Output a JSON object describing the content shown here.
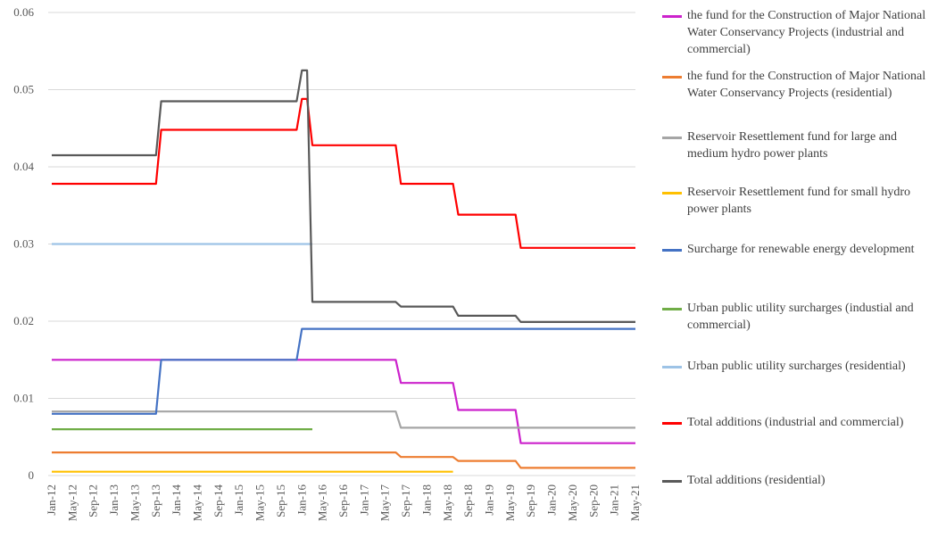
{
  "chart_data": {
    "type": "line",
    "title": "",
    "xlabel": "",
    "ylabel": "",
    "ylim": [
      0,
      0.06
    ],
    "yticks": [
      0,
      0.01,
      0.02,
      0.03,
      0.04,
      0.05,
      0.06
    ],
    "ytick_labels": [
      "0",
      "0.01",
      "0.02",
      "0.03",
      "0.04",
      "0.05",
      "0.06"
    ],
    "x_start": "Jan-12",
    "x_end": "May-21",
    "x_ticks": [
      "Jan-12",
      "May-12",
      "Sep-12",
      "Jan-13",
      "May-13",
      "Sep-13",
      "Jan-14",
      "May-14",
      "Sep-14",
      "Jan-15",
      "May-15",
      "Sep-15",
      "Jan-16",
      "May-16",
      "Sep-16",
      "Jan-17",
      "May-17",
      "Sep-17",
      "Jan-18",
      "May-18",
      "Sep-18",
      "Jan-19",
      "May-19",
      "Sep-19",
      "Jan-20",
      "May-20",
      "Sep-20",
      "Jan-21",
      "May-21"
    ],
    "grid": "horizontal",
    "legend_position": "right",
    "series": [
      {
        "name": "the fund for the Construction of Major National Water Conservancy Projects (industrial and commercial)",
        "color": "#cc22cc",
        "points": [
          [
            "Jan-12",
            0.015
          ],
          [
            "Jul-17",
            0.015
          ],
          [
            "Aug-17",
            0.012
          ],
          [
            "Jun-18",
            0.012
          ],
          [
            "Jul-18",
            0.0085
          ],
          [
            "Jun-19",
            0.0085
          ],
          [
            "Jul-19",
            0.0042
          ],
          [
            "May-21",
            0.0042
          ]
        ]
      },
      {
        "name": "the fund for the Construction of Major National Water Conservancy Projects (residential)",
        "color": "#ed7d31",
        "points": [
          [
            "Jan-12",
            0.003
          ],
          [
            "Jul-17",
            0.003
          ],
          [
            "Aug-17",
            0.0024
          ],
          [
            "Jun-18",
            0.0024
          ],
          [
            "Jul-18",
            0.0019
          ],
          [
            "Jun-19",
            0.0019
          ],
          [
            "Jul-19",
            0.001
          ],
          [
            "May-21",
            0.001
          ]
        ]
      },
      {
        "name": "Reservoir Resettlement fund for large and medium hydro power plants",
        "color": "#a5a5a5",
        "points": [
          [
            "Jan-12",
            0.0083
          ],
          [
            "Jul-17",
            0.0083
          ],
          [
            "Aug-17",
            0.0062
          ],
          [
            "May-21",
            0.0062
          ]
        ]
      },
      {
        "name": "Reservoir Resettlement fund for small hydro power plants",
        "color": "#ffc000",
        "points": [
          [
            "Jan-12",
            0.0005
          ],
          [
            "Jun-18",
            0.0005
          ]
        ]
      },
      {
        "name": "Surcharge for renewable energy development",
        "color": "#4472c4",
        "points": [
          [
            "Jan-12",
            0.008
          ],
          [
            "Sep-13",
            0.008
          ],
          [
            "Oct-13",
            0.015
          ],
          [
            "Dec-15",
            0.015
          ],
          [
            "Jan-16",
            0.019
          ],
          [
            "May-21",
            0.019
          ]
        ]
      },
      {
        "name": "Urban public utility surcharges (industial and commercial)",
        "color": "#70ad47",
        "points": [
          [
            "Jan-12",
            0.006
          ],
          [
            "Mar-16",
            0.006
          ]
        ]
      },
      {
        "name": "Urban public utility surcharges (residential)",
        "color": "#9dc3e6",
        "points": [
          [
            "Jan-12",
            0.03
          ],
          [
            "Mar-16",
            0.03
          ]
        ]
      },
      {
        "name": "Total additions (industrial and commercial)",
        "color": "#ff0000",
        "points": [
          [
            "Jan-12",
            0.0378
          ],
          [
            "Sep-13",
            0.0378
          ],
          [
            "Oct-13",
            0.0448
          ],
          [
            "Dec-15",
            0.0448
          ],
          [
            "Jan-16",
            0.0488
          ],
          [
            "Feb-16",
            0.0488
          ],
          [
            "Mar-16",
            0.0428
          ],
          [
            "Jul-17",
            0.0428
          ],
          [
            "Aug-17",
            0.0378
          ],
          [
            "Jun-18",
            0.0378
          ],
          [
            "Jul-18",
            0.0338
          ],
          [
            "Jun-19",
            0.0338
          ],
          [
            "Jul-19",
            0.0295
          ],
          [
            "May-21",
            0.0295
          ]
        ]
      },
      {
        "name": "Total additions (residential)",
        "color": "#595959",
        "points": [
          [
            "Jan-12",
            0.0415
          ],
          [
            "Sep-13",
            0.0415
          ],
          [
            "Oct-13",
            0.0485
          ],
          [
            "Dec-15",
            0.0485
          ],
          [
            "Jan-16",
            0.0525
          ],
          [
            "Feb-16",
            0.0525
          ],
          [
            "Mar-16",
            0.0225
          ],
          [
            "Jul-17",
            0.0225
          ],
          [
            "Aug-17",
            0.0219
          ],
          [
            "Jun-18",
            0.0219
          ],
          [
            "Jul-18",
            0.0207
          ],
          [
            "Jun-19",
            0.0207
          ],
          [
            "Jul-19",
            0.0199
          ],
          [
            "May-21",
            0.0199
          ]
        ]
      }
    ]
  }
}
